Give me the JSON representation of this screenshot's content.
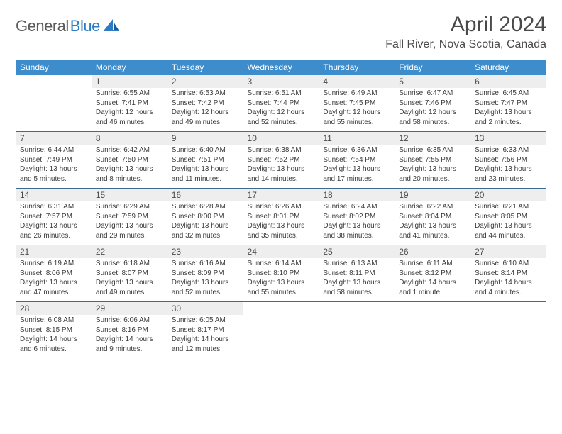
{
  "brand": {
    "text1": "General",
    "text2": "Blue"
  },
  "title": "April 2024",
  "location": "Fall River, Nova Scotia, Canada",
  "colors": {
    "header_bg": "#3d8ccc",
    "header_fg": "#ffffff",
    "daynum_bg": "#eeeeee",
    "rule": "#3d6b8c",
    "text": "#4a4a4a"
  },
  "dow": [
    "Sunday",
    "Monday",
    "Tuesday",
    "Wednesday",
    "Thursday",
    "Friday",
    "Saturday"
  ],
  "weeks": [
    [
      null,
      {
        "n": "1",
        "sr": "Sunrise: 6:55 AM",
        "ss": "Sunset: 7:41 PM",
        "d1": "Daylight: 12 hours",
        "d2": "and 46 minutes."
      },
      {
        "n": "2",
        "sr": "Sunrise: 6:53 AM",
        "ss": "Sunset: 7:42 PM",
        "d1": "Daylight: 12 hours",
        "d2": "and 49 minutes."
      },
      {
        "n": "3",
        "sr": "Sunrise: 6:51 AM",
        "ss": "Sunset: 7:44 PM",
        "d1": "Daylight: 12 hours",
        "d2": "and 52 minutes."
      },
      {
        "n": "4",
        "sr": "Sunrise: 6:49 AM",
        "ss": "Sunset: 7:45 PM",
        "d1": "Daylight: 12 hours",
        "d2": "and 55 minutes."
      },
      {
        "n": "5",
        "sr": "Sunrise: 6:47 AM",
        "ss": "Sunset: 7:46 PM",
        "d1": "Daylight: 12 hours",
        "d2": "and 58 minutes."
      },
      {
        "n": "6",
        "sr": "Sunrise: 6:45 AM",
        "ss": "Sunset: 7:47 PM",
        "d1": "Daylight: 13 hours",
        "d2": "and 2 minutes."
      }
    ],
    [
      {
        "n": "7",
        "sr": "Sunrise: 6:44 AM",
        "ss": "Sunset: 7:49 PM",
        "d1": "Daylight: 13 hours",
        "d2": "and 5 minutes."
      },
      {
        "n": "8",
        "sr": "Sunrise: 6:42 AM",
        "ss": "Sunset: 7:50 PM",
        "d1": "Daylight: 13 hours",
        "d2": "and 8 minutes."
      },
      {
        "n": "9",
        "sr": "Sunrise: 6:40 AM",
        "ss": "Sunset: 7:51 PM",
        "d1": "Daylight: 13 hours",
        "d2": "and 11 minutes."
      },
      {
        "n": "10",
        "sr": "Sunrise: 6:38 AM",
        "ss": "Sunset: 7:52 PM",
        "d1": "Daylight: 13 hours",
        "d2": "and 14 minutes."
      },
      {
        "n": "11",
        "sr": "Sunrise: 6:36 AM",
        "ss": "Sunset: 7:54 PM",
        "d1": "Daylight: 13 hours",
        "d2": "and 17 minutes."
      },
      {
        "n": "12",
        "sr": "Sunrise: 6:35 AM",
        "ss": "Sunset: 7:55 PM",
        "d1": "Daylight: 13 hours",
        "d2": "and 20 minutes."
      },
      {
        "n": "13",
        "sr": "Sunrise: 6:33 AM",
        "ss": "Sunset: 7:56 PM",
        "d1": "Daylight: 13 hours",
        "d2": "and 23 minutes."
      }
    ],
    [
      {
        "n": "14",
        "sr": "Sunrise: 6:31 AM",
        "ss": "Sunset: 7:57 PM",
        "d1": "Daylight: 13 hours",
        "d2": "and 26 minutes."
      },
      {
        "n": "15",
        "sr": "Sunrise: 6:29 AM",
        "ss": "Sunset: 7:59 PM",
        "d1": "Daylight: 13 hours",
        "d2": "and 29 minutes."
      },
      {
        "n": "16",
        "sr": "Sunrise: 6:28 AM",
        "ss": "Sunset: 8:00 PM",
        "d1": "Daylight: 13 hours",
        "d2": "and 32 minutes."
      },
      {
        "n": "17",
        "sr": "Sunrise: 6:26 AM",
        "ss": "Sunset: 8:01 PM",
        "d1": "Daylight: 13 hours",
        "d2": "and 35 minutes."
      },
      {
        "n": "18",
        "sr": "Sunrise: 6:24 AM",
        "ss": "Sunset: 8:02 PM",
        "d1": "Daylight: 13 hours",
        "d2": "and 38 minutes."
      },
      {
        "n": "19",
        "sr": "Sunrise: 6:22 AM",
        "ss": "Sunset: 8:04 PM",
        "d1": "Daylight: 13 hours",
        "d2": "and 41 minutes."
      },
      {
        "n": "20",
        "sr": "Sunrise: 6:21 AM",
        "ss": "Sunset: 8:05 PM",
        "d1": "Daylight: 13 hours",
        "d2": "and 44 minutes."
      }
    ],
    [
      {
        "n": "21",
        "sr": "Sunrise: 6:19 AM",
        "ss": "Sunset: 8:06 PM",
        "d1": "Daylight: 13 hours",
        "d2": "and 47 minutes."
      },
      {
        "n": "22",
        "sr": "Sunrise: 6:18 AM",
        "ss": "Sunset: 8:07 PM",
        "d1": "Daylight: 13 hours",
        "d2": "and 49 minutes."
      },
      {
        "n": "23",
        "sr": "Sunrise: 6:16 AM",
        "ss": "Sunset: 8:09 PM",
        "d1": "Daylight: 13 hours",
        "d2": "and 52 minutes."
      },
      {
        "n": "24",
        "sr": "Sunrise: 6:14 AM",
        "ss": "Sunset: 8:10 PM",
        "d1": "Daylight: 13 hours",
        "d2": "and 55 minutes."
      },
      {
        "n": "25",
        "sr": "Sunrise: 6:13 AM",
        "ss": "Sunset: 8:11 PM",
        "d1": "Daylight: 13 hours",
        "d2": "and 58 minutes."
      },
      {
        "n": "26",
        "sr": "Sunrise: 6:11 AM",
        "ss": "Sunset: 8:12 PM",
        "d1": "Daylight: 14 hours",
        "d2": "and 1 minute."
      },
      {
        "n": "27",
        "sr": "Sunrise: 6:10 AM",
        "ss": "Sunset: 8:14 PM",
        "d1": "Daylight: 14 hours",
        "d2": "and 4 minutes."
      }
    ],
    [
      {
        "n": "28",
        "sr": "Sunrise: 6:08 AM",
        "ss": "Sunset: 8:15 PM",
        "d1": "Daylight: 14 hours",
        "d2": "and 6 minutes."
      },
      {
        "n": "29",
        "sr": "Sunrise: 6:06 AM",
        "ss": "Sunset: 8:16 PM",
        "d1": "Daylight: 14 hours",
        "d2": "and 9 minutes."
      },
      {
        "n": "30",
        "sr": "Sunrise: 6:05 AM",
        "ss": "Sunset: 8:17 PM",
        "d1": "Daylight: 14 hours",
        "d2": "and 12 minutes."
      },
      null,
      null,
      null,
      null
    ]
  ]
}
